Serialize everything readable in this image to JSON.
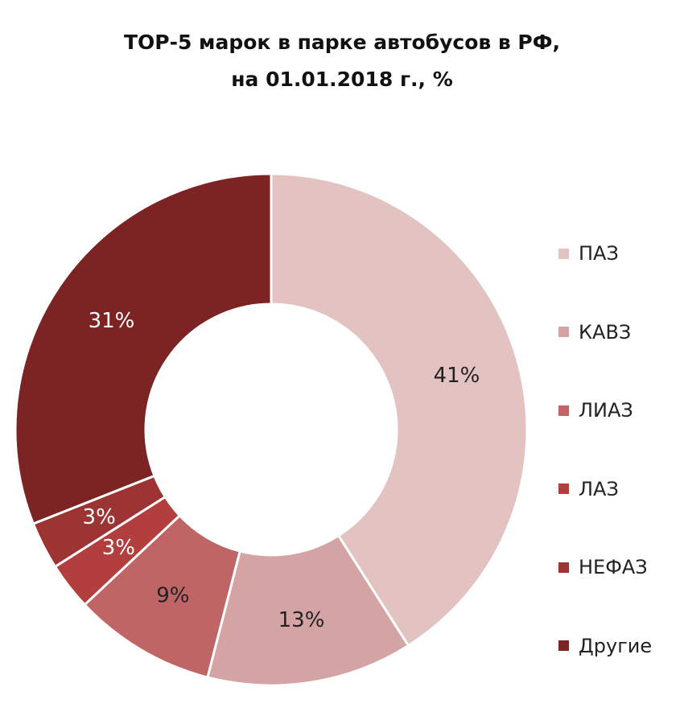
{
  "chart_data": {
    "type": "pie",
    "variant": "donut",
    "title_lines": [
      "ТОР-5 марок в парке автобусов в РФ,",
      "на 01.01.2018 г., %"
    ],
    "categories": [
      "ПАЗ",
      "КАВЗ",
      "ЛИАЗ",
      "ЛАЗ",
      "НЕФАЗ",
      "Другие"
    ],
    "values": [
      41,
      13,
      9,
      3,
      3,
      31
    ],
    "data_labels": [
      "41%",
      "13%",
      "9%",
      "3%",
      "3%",
      "31%"
    ],
    "unit": "%",
    "colors": [
      "#e3c2c2",
      "#d4a3a3",
      "#c06565",
      "#b23e3e",
      "#9c3434",
      "#7c2424"
    ],
    "label_colors": [
      "#222222",
      "#222222",
      "#222222",
      "#ffffff",
      "#ffffff",
      "#ffffff"
    ],
    "legend_position": "right"
  }
}
